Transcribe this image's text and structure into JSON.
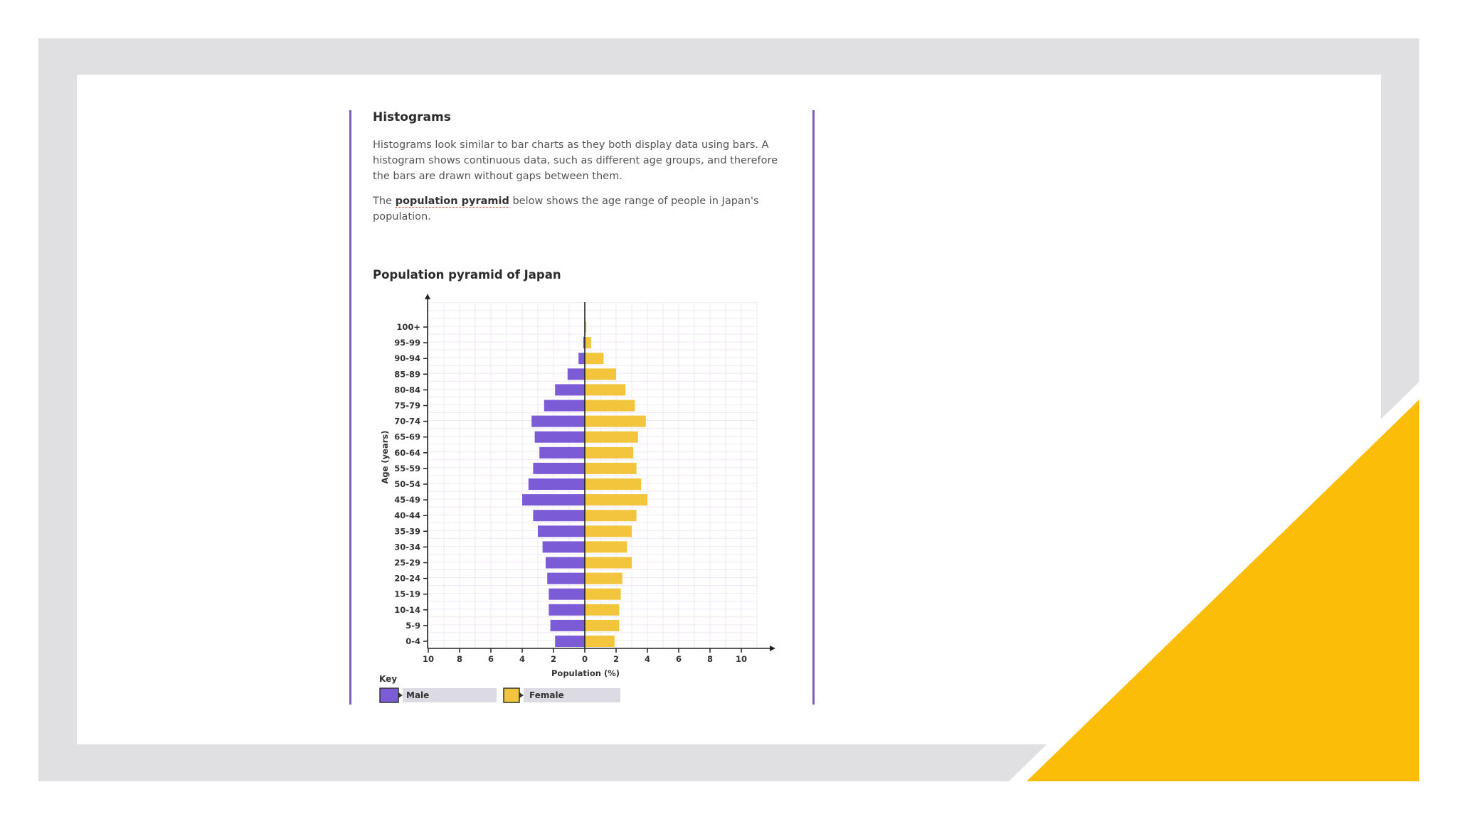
{
  "colors": {
    "frame": "#e0e0e2",
    "accent": "#fbbd07",
    "card_border": "#7b5fb8",
    "male": "#7b5cd6",
    "female": "#f2c53d"
  },
  "card": {
    "heading": "Histograms",
    "para1": "Histograms look similar to bar charts as they both display data using bars. A histogram shows continuous data, such as different age groups, and therefore the bars are drawn without gaps between them.",
    "para2_before": "The",
    "para2_keyword": "population pyramid",
    "para2_after": "below shows the age range of people in Japan's population."
  },
  "chart_data": {
    "type": "bar",
    "orientation": "horizontal-pyramid",
    "title": "Population pyramid of Japan",
    "xlabel": "Population (%)",
    "ylabel": "Age (years)",
    "xlim": [
      -10,
      10
    ],
    "x_tick_labels": [
      "10",
      "8",
      "6",
      "4",
      "2",
      "0",
      "2",
      "4",
      "6",
      "8",
      "10"
    ],
    "grid": true,
    "key_title": "Key",
    "categories": [
      "0-4",
      "5-9",
      "10-14",
      "15-19",
      "20-24",
      "25-29",
      "30-34",
      "35-39",
      "40-44",
      "45-49",
      "50-54",
      "55-59",
      "60-64",
      "65-69",
      "70-74",
      "75-79",
      "80-84",
      "85-89",
      "90-94",
      "95-99",
      "100+"
    ],
    "series": [
      {
        "name": "Male",
        "values": [
          1.9,
          2.2,
          2.3,
          2.3,
          2.4,
          2.5,
          2.7,
          3.0,
          3.3,
          4.0,
          3.6,
          3.3,
          2.9,
          3.2,
          3.4,
          2.6,
          1.9,
          1.1,
          0.4,
          0.1,
          0.0
        ]
      },
      {
        "name": "Female",
        "values": [
          1.9,
          2.2,
          2.2,
          2.3,
          2.4,
          3.0,
          2.7,
          3.0,
          3.3,
          4.0,
          3.6,
          3.3,
          3.1,
          3.4,
          3.9,
          3.2,
          2.6,
          2.0,
          1.2,
          0.4,
          0.1
        ]
      }
    ]
  }
}
